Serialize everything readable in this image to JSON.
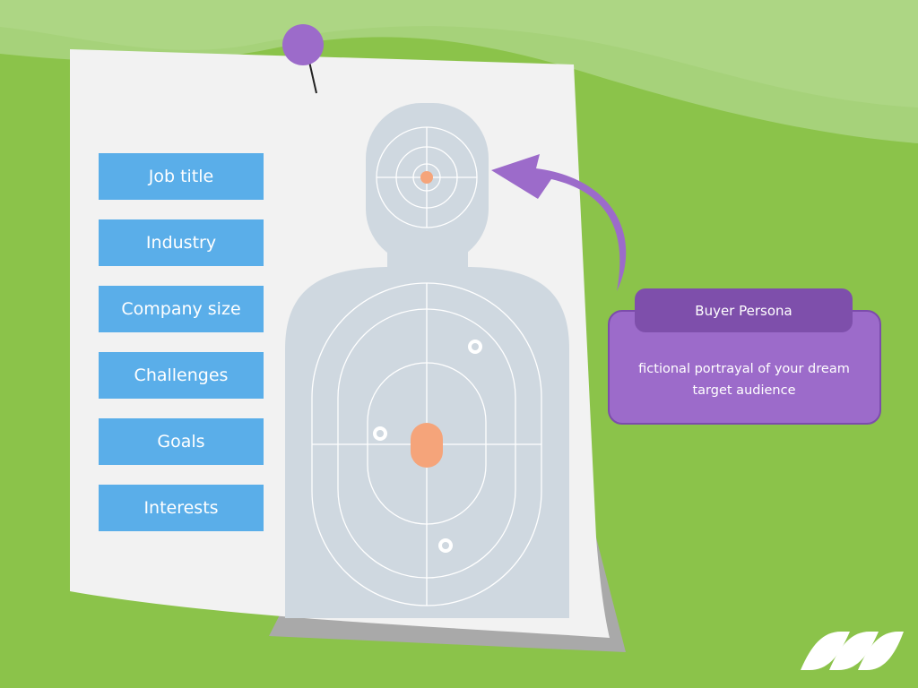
{
  "attributes": [
    {
      "label": "Job title"
    },
    {
      "label": "Industry"
    },
    {
      "label": "Company size"
    },
    {
      "label": "Challenges"
    },
    {
      "label": "Goals"
    },
    {
      "label": "Interests"
    }
  ],
  "callout": {
    "title": "Buyer Persona",
    "description": "fictional portrayal of your dream target audience"
  },
  "icons": [
    "push-pin-icon",
    "target-silhouette",
    "bullet-hole-icon",
    "curved-arrow-icon",
    "brand-logo"
  ],
  "colors": {
    "background": "#8bc34a",
    "attribute_box": "#5aaee9",
    "callout": "#9c6bca",
    "callout_header": "#7e4fab",
    "target_center": "#f5a47a",
    "silhouette": "#cfd8e0"
  }
}
